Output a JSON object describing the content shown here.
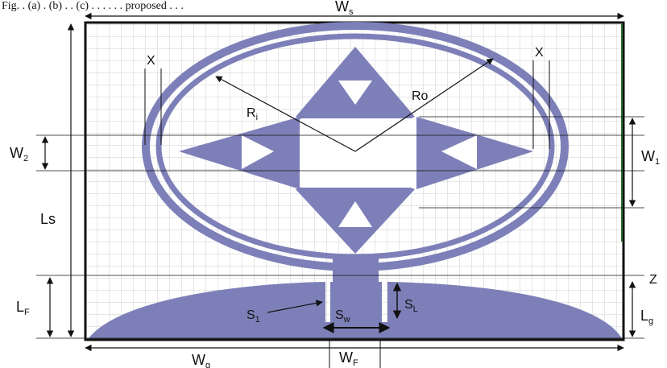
{
  "caption_fragment": "Fig. . (a) . (b) . . (c) . . . . . . proposed . . .",
  "colors": {
    "patch": "#7d80b8",
    "grid": "#c8c8c8",
    "board": "#ffffff",
    "outline": "#111111",
    "dim_line": "#111111"
  },
  "labels": {
    "ws": {
      "main": "W",
      "sub": "s"
    },
    "wg": {
      "main": "W",
      "sub": "g"
    },
    "wf": {
      "main": "W",
      "sub": "F"
    },
    "sw": {
      "main": "S",
      "sub": "w"
    },
    "s1": {
      "main": "S",
      "sub": "1"
    },
    "sl": {
      "main": "S",
      "sub": "L"
    },
    "lf": {
      "main": "L",
      "sub": "F"
    },
    "lg": {
      "main": "L",
      "sub": "g"
    },
    "ls": {
      "main": "Ls",
      "sub": ""
    },
    "w1": {
      "main": "W",
      "sub": "1"
    },
    "w2": {
      "main": "W",
      "sub": "2"
    },
    "ri": {
      "main": "R",
      "sub": "i"
    },
    "ro": {
      "main": "Ro",
      "sub": ""
    },
    "x_left": "X",
    "x_right": "X",
    "z": "Z"
  }
}
